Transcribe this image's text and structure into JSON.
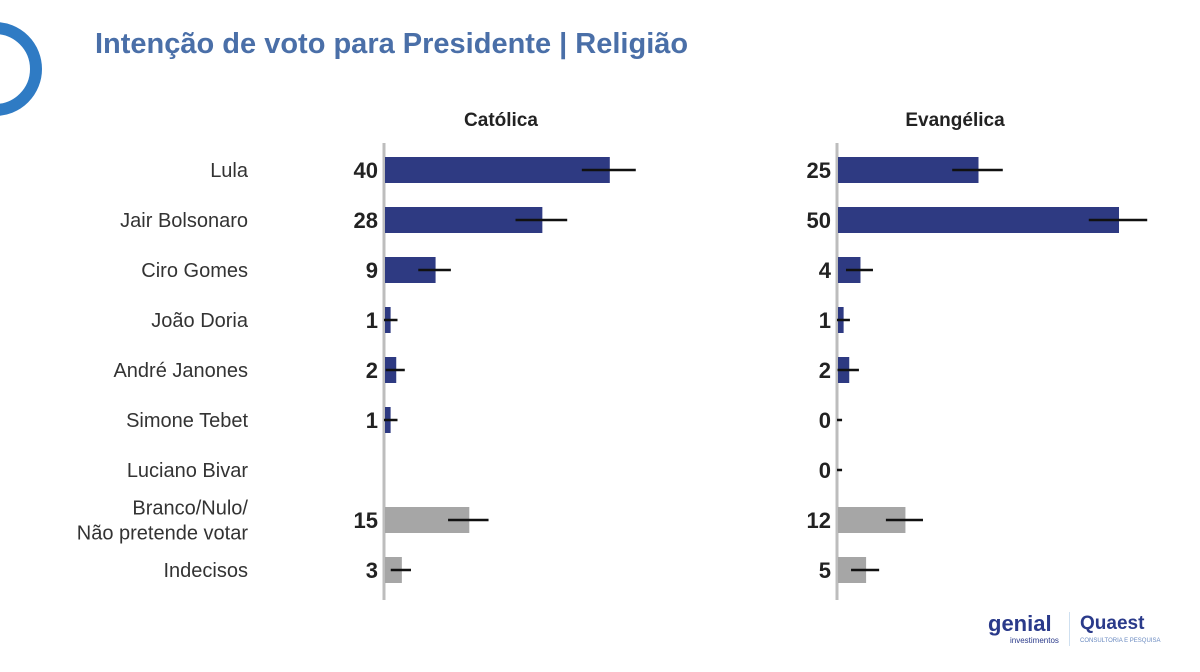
{
  "title": "Intenção de voto para Presidente | Religião",
  "logos": {
    "genial": "genial",
    "genial_sub": "investimentos",
    "quaest": "Quaest",
    "quaest_sub": "CONSULTORIA E PESQUISA"
  },
  "colors": {
    "candidate": "#2e3a82",
    "other": "#a6a6a6",
    "axis": "#bdbdbd",
    "error": "#111111"
  },
  "chart_data": {
    "type": "bar",
    "orientation": "horizontal",
    "categories": [
      "Lula",
      "Jair Bolsonaro",
      "Ciro Gomes",
      "João Doria",
      "André Janones",
      "Simone Tebet",
      "Luciano Bivar",
      "Branco/Nulo/\nNão pretende votar",
      "Indecisos"
    ],
    "category_group": [
      "candidate",
      "candidate",
      "candidate",
      "candidate",
      "candidate",
      "candidate",
      "candidate",
      "other",
      "other"
    ],
    "series": [
      {
        "name": "Católica",
        "values": [
          40,
          28,
          9,
          1,
          2,
          1,
          null,
          15,
          3
        ],
        "error": [
          4.8,
          4.6,
          2.9,
          1.4,
          1.7,
          1.4,
          null,
          3.6,
          1.8
        ]
      },
      {
        "name": "Evangélica",
        "values": [
          25,
          50,
          4,
          1,
          2,
          0,
          0,
          12,
          5
        ],
        "error": [
          4.5,
          5.2,
          2.4,
          1.3,
          1.9,
          0.9,
          0.9,
          3.3,
          2.5
        ]
      }
    ],
    "xlim": [
      0,
      55
    ]
  }
}
